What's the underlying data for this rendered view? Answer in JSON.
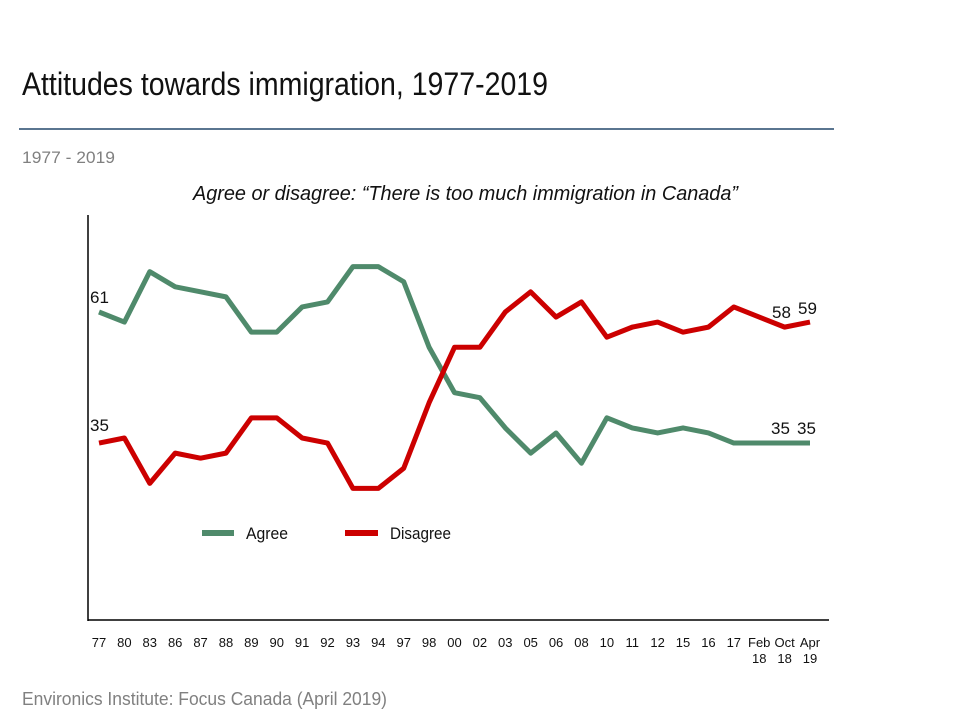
{
  "slide": {
    "title": "Attitudes towards immigration, 1977-2019",
    "subtitle": "1977 - 2019",
    "source": "Environics Institute: Focus Canada (April 2019)",
    "rule_color": "#5a7590"
  },
  "chart_data": {
    "type": "line",
    "title": "Agree or disagree: “There is too much immigration in Canada”",
    "xlabel": "",
    "ylabel": "",
    "grid": false,
    "legend_position": "bottom-left",
    "categories": [
      "77",
      "80",
      "83",
      "86",
      "87",
      "88",
      "89",
      "90",
      "91",
      "92",
      "93",
      "94",
      "97",
      "98",
      "00",
      "02",
      "03",
      "05",
      "06",
      "08",
      "10",
      "11",
      "12",
      "15",
      "16",
      "17",
      "Feb 18",
      "Oct 18",
      "Apr 19"
    ],
    "category_lines": [
      [
        "77"
      ],
      [
        "80"
      ],
      [
        "83"
      ],
      [
        "86"
      ],
      [
        "87"
      ],
      [
        "88"
      ],
      [
        "89"
      ],
      [
        "90"
      ],
      [
        "91"
      ],
      [
        "92"
      ],
      [
        "93"
      ],
      [
        "94"
      ],
      [
        "97"
      ],
      [
        "98"
      ],
      [
        "00"
      ],
      [
        "02"
      ],
      [
        "03"
      ],
      [
        "05"
      ],
      [
        "06"
      ],
      [
        "08"
      ],
      [
        "10"
      ],
      [
        "11"
      ],
      [
        "12"
      ],
      [
        "15"
      ],
      [
        "16"
      ],
      [
        "17"
      ],
      [
        "Feb",
        "18"
      ],
      [
        "Oct",
        "18"
      ],
      [
        "Apr",
        "19"
      ]
    ],
    "series": [
      {
        "name": "Agree",
        "color": "#4f8a6b",
        "values": [
          61,
          59,
          69,
          66,
          65,
          64,
          57,
          57,
          62,
          63,
          70,
          70,
          67,
          54,
          45,
          44,
          38,
          33,
          37,
          31,
          40,
          38,
          37,
          38,
          37,
          35,
          35,
          35,
          35
        ]
      },
      {
        "name": "Disagree",
        "color": "#cc0000",
        "values": [
          35,
          36,
          27,
          33,
          32,
          33,
          40,
          40,
          36,
          35,
          26,
          26,
          30,
          43,
          54,
          54,
          61,
          65,
          60,
          63,
          56,
          58,
          59,
          57,
          58,
          62,
          60,
          58,
          59
        ]
      }
    ],
    "data_labels": {
      "agree_start": "61",
      "disagree_start": "35",
      "disagree_oct18": "58",
      "disagree_apr19": "59",
      "agree_oct18": "35",
      "agree_apr19": "35"
    }
  }
}
